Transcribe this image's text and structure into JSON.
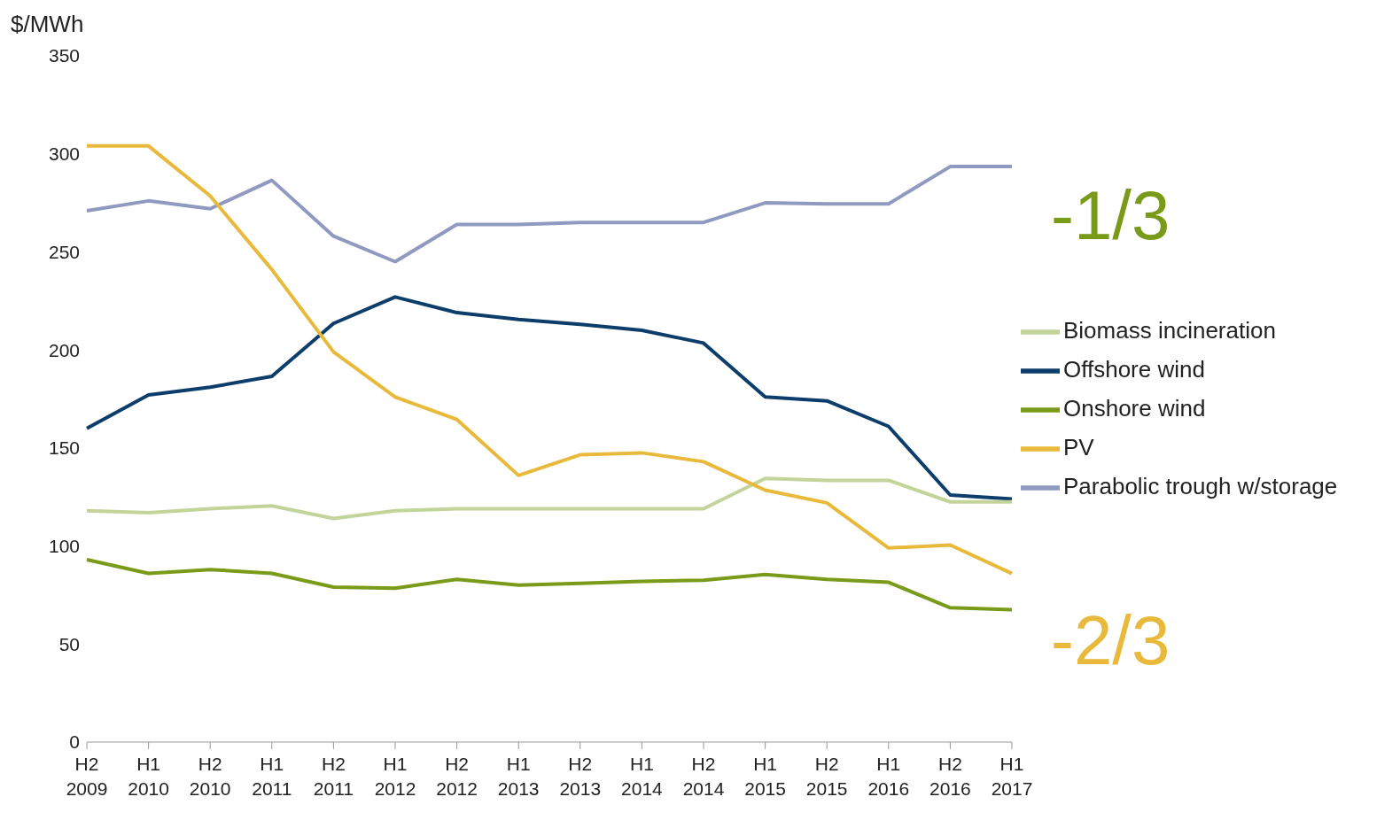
{
  "chart_data": {
    "type": "line",
    "ylabel": "$/MWh",
    "categories": [
      "H2 2009",
      "H1 2010",
      "H2 2010",
      "H1 2011",
      "H2 2011",
      "H1 2012",
      "H2 2012",
      "H1 2013",
      "H2 2013",
      "H1 2014",
      "H2 2014",
      "H1 2015",
      "H2 2015",
      "H1 2016",
      "H2 2016",
      "H1 2017"
    ],
    "series": [
      {
        "name": "Onshore wind",
        "color": "#7a9a1a",
        "values": [
          93,
          86,
          88,
          86,
          79,
          78.5,
          83,
          80,
          81,
          82,
          82.5,
          85.5,
          83,
          81.5,
          68.5,
          67.5
        ]
      },
      {
        "name": "Offshore wind",
        "color": "#0c3d6b",
        "values": [
          160,
          177,
          181,
          186.5,
          213.5,
          227,
          219,
          215.5,
          213,
          210,
          203.5,
          176,
          174,
          161,
          126,
          124
        ]
      },
      {
        "name": "Biomass incineration",
        "color": "#c3d49a",
        "values": [
          118,
          117,
          119,
          120.5,
          114,
          118,
          119,
          119,
          119,
          119,
          119,
          134.5,
          133.5,
          133.5,
          122.5,
          122.5
        ]
      },
      {
        "name": "Parabolic trough w/storage",
        "color": "#9099c0",
        "values": [
          271,
          276,
          272,
          286.5,
          258,
          245,
          264,
          264,
          265,
          265,
          265,
          275,
          274.5,
          274.5,
          293.5,
          293.5
        ]
      },
      {
        "name": "PV",
        "color": "#e8b93a",
        "values": [
          304,
          304,
          278.5,
          241,
          199,
          176,
          164.5,
          136,
          146.5,
          147.5,
          143,
          128.5,
          122,
          99,
          100.5,
          86
        ]
      }
    ],
    "ylim": [
      0,
      350
    ],
    "yticks": [
      0,
      50,
      100,
      150,
      200,
      250,
      300,
      350
    ],
    "grid": false,
    "legend": "right",
    "marker": "none",
    "line_style": "solid",
    "annotations": [
      "-1/3",
      "-2/3"
    ]
  }
}
